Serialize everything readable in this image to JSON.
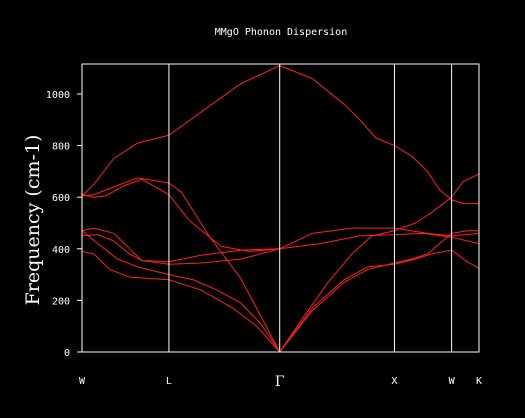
{
  "chart_data": {
    "type": "line",
    "title": "MMgO Phonon Dispersion",
    "ylabel": "Frequency (cm-1)",
    "xlabel": "",
    "ylim": [
      -20,
      1120
    ],
    "yticks": [
      0,
      200,
      400,
      600,
      800,
      1000
    ],
    "grid": false,
    "legend": "none",
    "colors": {
      "background": "#000000",
      "axes": "#ffffff",
      "series": "#ff2020"
    },
    "high_symmetry_points": [
      {
        "label": "W",
        "x": 0.0
      },
      {
        "label": "L",
        "x": 0.219
      },
      {
        "label": "Γ",
        "x": 0.498
      },
      {
        "label": "X",
        "x": 0.787
      },
      {
        "label": "W",
        "x": 0.931
      },
      {
        "label": "K",
        "x": 1.0
      }
    ],
    "series": [
      {
        "x": [
          0,
          0.03,
          0.08,
          0.14,
          0.219,
          0.3,
          0.4,
          0.498,
          0.58,
          0.66,
          0.7,
          0.74,
          0.787,
          0.83,
          0.87,
          0.9,
          0.931,
          0.96,
          1.0
        ],
        "values": [
          605,
          650,
          750,
          810,
          840,
          930,
          1040,
          1110,
          1060,
          960,
          900,
          830,
          800,
          760,
          700,
          630,
          590,
          575,
          575
        ]
      },
      {
        "x": [
          0,
          0.03,
          0.08,
          0.14,
          0.219,
          0.25,
          0.32,
          0.4,
          0.45,
          0.498
        ],
        "values": [
          605,
          610,
          640,
          675,
          655,
          620,
          450,
          285,
          140,
          0
        ]
      },
      {
        "x": [
          0,
          0.03,
          0.06,
          0.1,
          0.15,
          0.219,
          0.27,
          0.35,
          0.42,
          0.498
        ],
        "values": [
          610,
          600,
          605,
          640,
          670,
          610,
          510,
          410,
          390,
          400
        ]
      },
      {
        "x": [
          0.498,
          0.56,
          0.62,
          0.68,
          0.73,
          0.787,
          0.84,
          0.88,
          0.931,
          0.96,
          1.0
        ],
        "values": [
          0,
          140,
          270,
          380,
          450,
          470,
          500,
          540,
          600,
          660,
          690
        ]
      },
      {
        "x": [
          0,
          0.03,
          0.08,
          0.12,
          0.15,
          0.219,
          0.3,
          0.4,
          0.498
        ],
        "values": [
          470,
          480,
          460,
          400,
          355,
          350,
          375,
          395,
          400
        ]
      },
      {
        "x": [
          0.498,
          0.6,
          0.7,
          0.787,
          0.86,
          0.931,
          1.0
        ],
        "values": [
          400,
          420,
          450,
          455,
          460,
          445,
          420
        ]
      },
      {
        "x": [
          0,
          0.04,
          0.08,
          0.12,
          0.15,
          0.219,
          0.3,
          0.4,
          0.498
        ],
        "values": [
          450,
          455,
          430,
          380,
          355,
          340,
          345,
          360,
          400
        ]
      },
      {
        "x": [
          0.498,
          0.58,
          0.68,
          0.787,
          0.83,
          0.87,
          0.931,
          1.0
        ],
        "values": [
          400,
          460,
          480,
          480,
          470,
          460,
          450,
          460
        ]
      },
      {
        "x": [
          0,
          0.04,
          0.09,
          0.14,
          0.219,
          0.28,
          0.34,
          0.4,
          0.45,
          0.498
        ],
        "values": [
          470,
          420,
          360,
          330,
          300,
          280,
          240,
          190,
          110,
          0
        ]
      },
      {
        "x": [
          0.498,
          0.58,
          0.66,
          0.72,
          0.787,
          0.83,
          0.87,
          0.931,
          0.97,
          1.0
        ],
        "values": [
          0,
          160,
          270,
          320,
          345,
          360,
          380,
          460,
          470,
          470
        ]
      },
      {
        "x": [
          0,
          0.03,
          0.07,
          0.12,
          0.219,
          0.3,
          0.38,
          0.44,
          0.498
        ],
        "values": [
          390,
          380,
          320,
          290,
          280,
          240,
          170,
          100,
          0
        ]
      },
      {
        "x": [
          0.498,
          0.58,
          0.66,
          0.72,
          0.787,
          0.84,
          0.88,
          0.931,
          0.97,
          1.0
        ],
        "values": [
          0,
          170,
          280,
          330,
          340,
          360,
          380,
          395,
          350,
          325
        ]
      }
    ]
  }
}
